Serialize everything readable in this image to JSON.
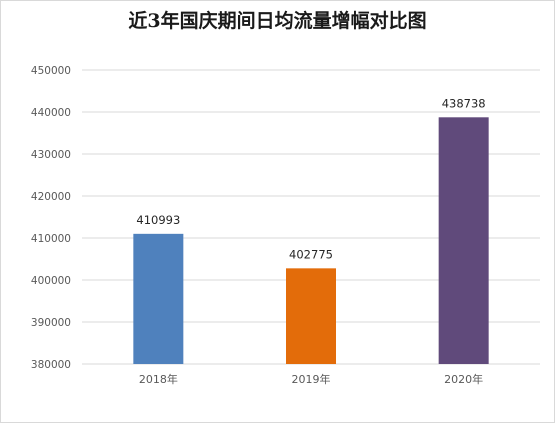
{
  "chart_data": {
    "type": "bar",
    "title": "近3年国庆期间日均流量增幅对比图",
    "categories": [
      "2018年",
      "2019年",
      "2020年"
    ],
    "values": [
      410993,
      402775,
      438738
    ],
    "data_labels": [
      "410993",
      "402775",
      "438738"
    ],
    "colors": [
      "#4f81bd",
      "#e36c0a",
      "#604a7b"
    ],
    "ylim": [
      380000,
      450000
    ],
    "yticks": [
      "450000",
      "440000",
      "430000",
      "420000",
      "410000",
      "400000",
      "390000",
      "380000"
    ],
    "xlabel": "",
    "ylabel": "",
    "grid": true,
    "legend": "none"
  }
}
